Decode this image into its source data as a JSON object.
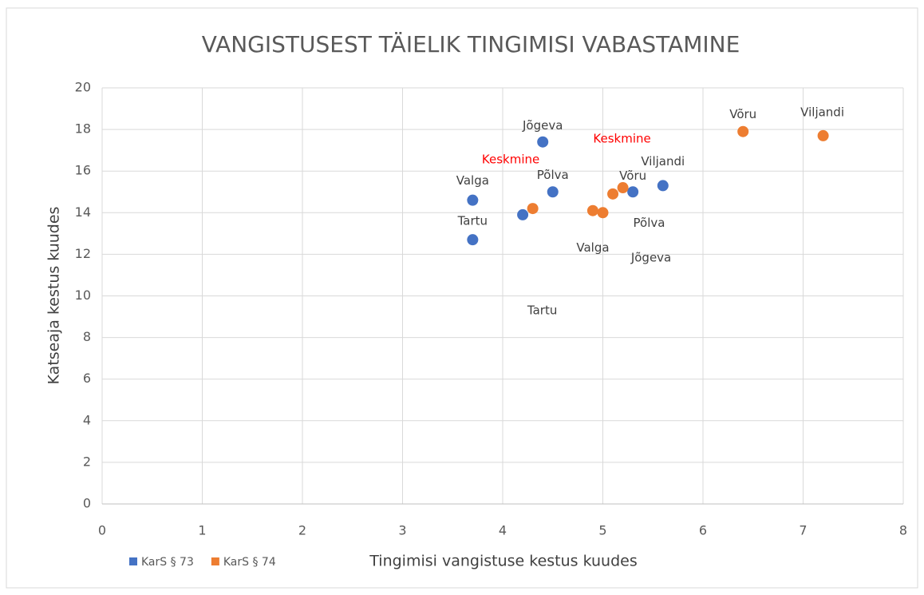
{
  "chart_data": {
    "type": "scatter",
    "title": "VANGISTUSEST TÄIELIK TINGIMISI VABASTAMINE",
    "x_label": "Tingimisi vangistuse kestus kuudes",
    "y_label": "Katseaja kestus kuudes",
    "xlim": [
      0,
      8
    ],
    "xticks": [
      0,
      1,
      2,
      3,
      4,
      5,
      6,
      7,
      8
    ],
    "ylim": [
      0,
      20
    ],
    "yticks": [
      0,
      2,
      4,
      6,
      8,
      10,
      12,
      14,
      16,
      18,
      20
    ],
    "grid": true,
    "legend": "bottom-left",
    "series": [
      {
        "name": "KarS § 73",
        "color": "#4472c4",
        "x": [
          3.7,
          3.7,
          4.4,
          4.5,
          4.2,
          5.3,
          5.6
        ],
        "values": [
          14.6,
          12.7,
          17.4,
          15.0,
          13.9,
          15.0,
          15.3
        ],
        "labels": [
          "Valga",
          "Tartu",
          "Jõgeva",
          "Põlva",
          "Keskmine",
          "Võru",
          "Viljandi"
        ],
        "label_colors": [
          "#404040",
          "#404040",
          "#404040",
          "#404040",
          "#ff0000",
          "#404040",
          "#404040"
        ]
      },
      {
        "name": "KarS § 74",
        "color": "#ed7d31",
        "x": [
          4.3,
          4.9,
          5.0,
          5.1,
          5.2,
          6.4,
          7.2
        ],
        "values": [
          14.2,
          14.1,
          14.0,
          14.9,
          15.2,
          17.9,
          17.7
        ],
        "labels": [
          "Tartu",
          "Valga",
          "Põlva",
          "Jõgeva",
          "Keskmine",
          "Võru",
          "Viljandi"
        ],
        "label_colors": [
          "#404040",
          "#404040",
          "#404040",
          "#404040",
          "#ff0000",
          "#404040",
          "#404040"
        ]
      }
    ]
  }
}
